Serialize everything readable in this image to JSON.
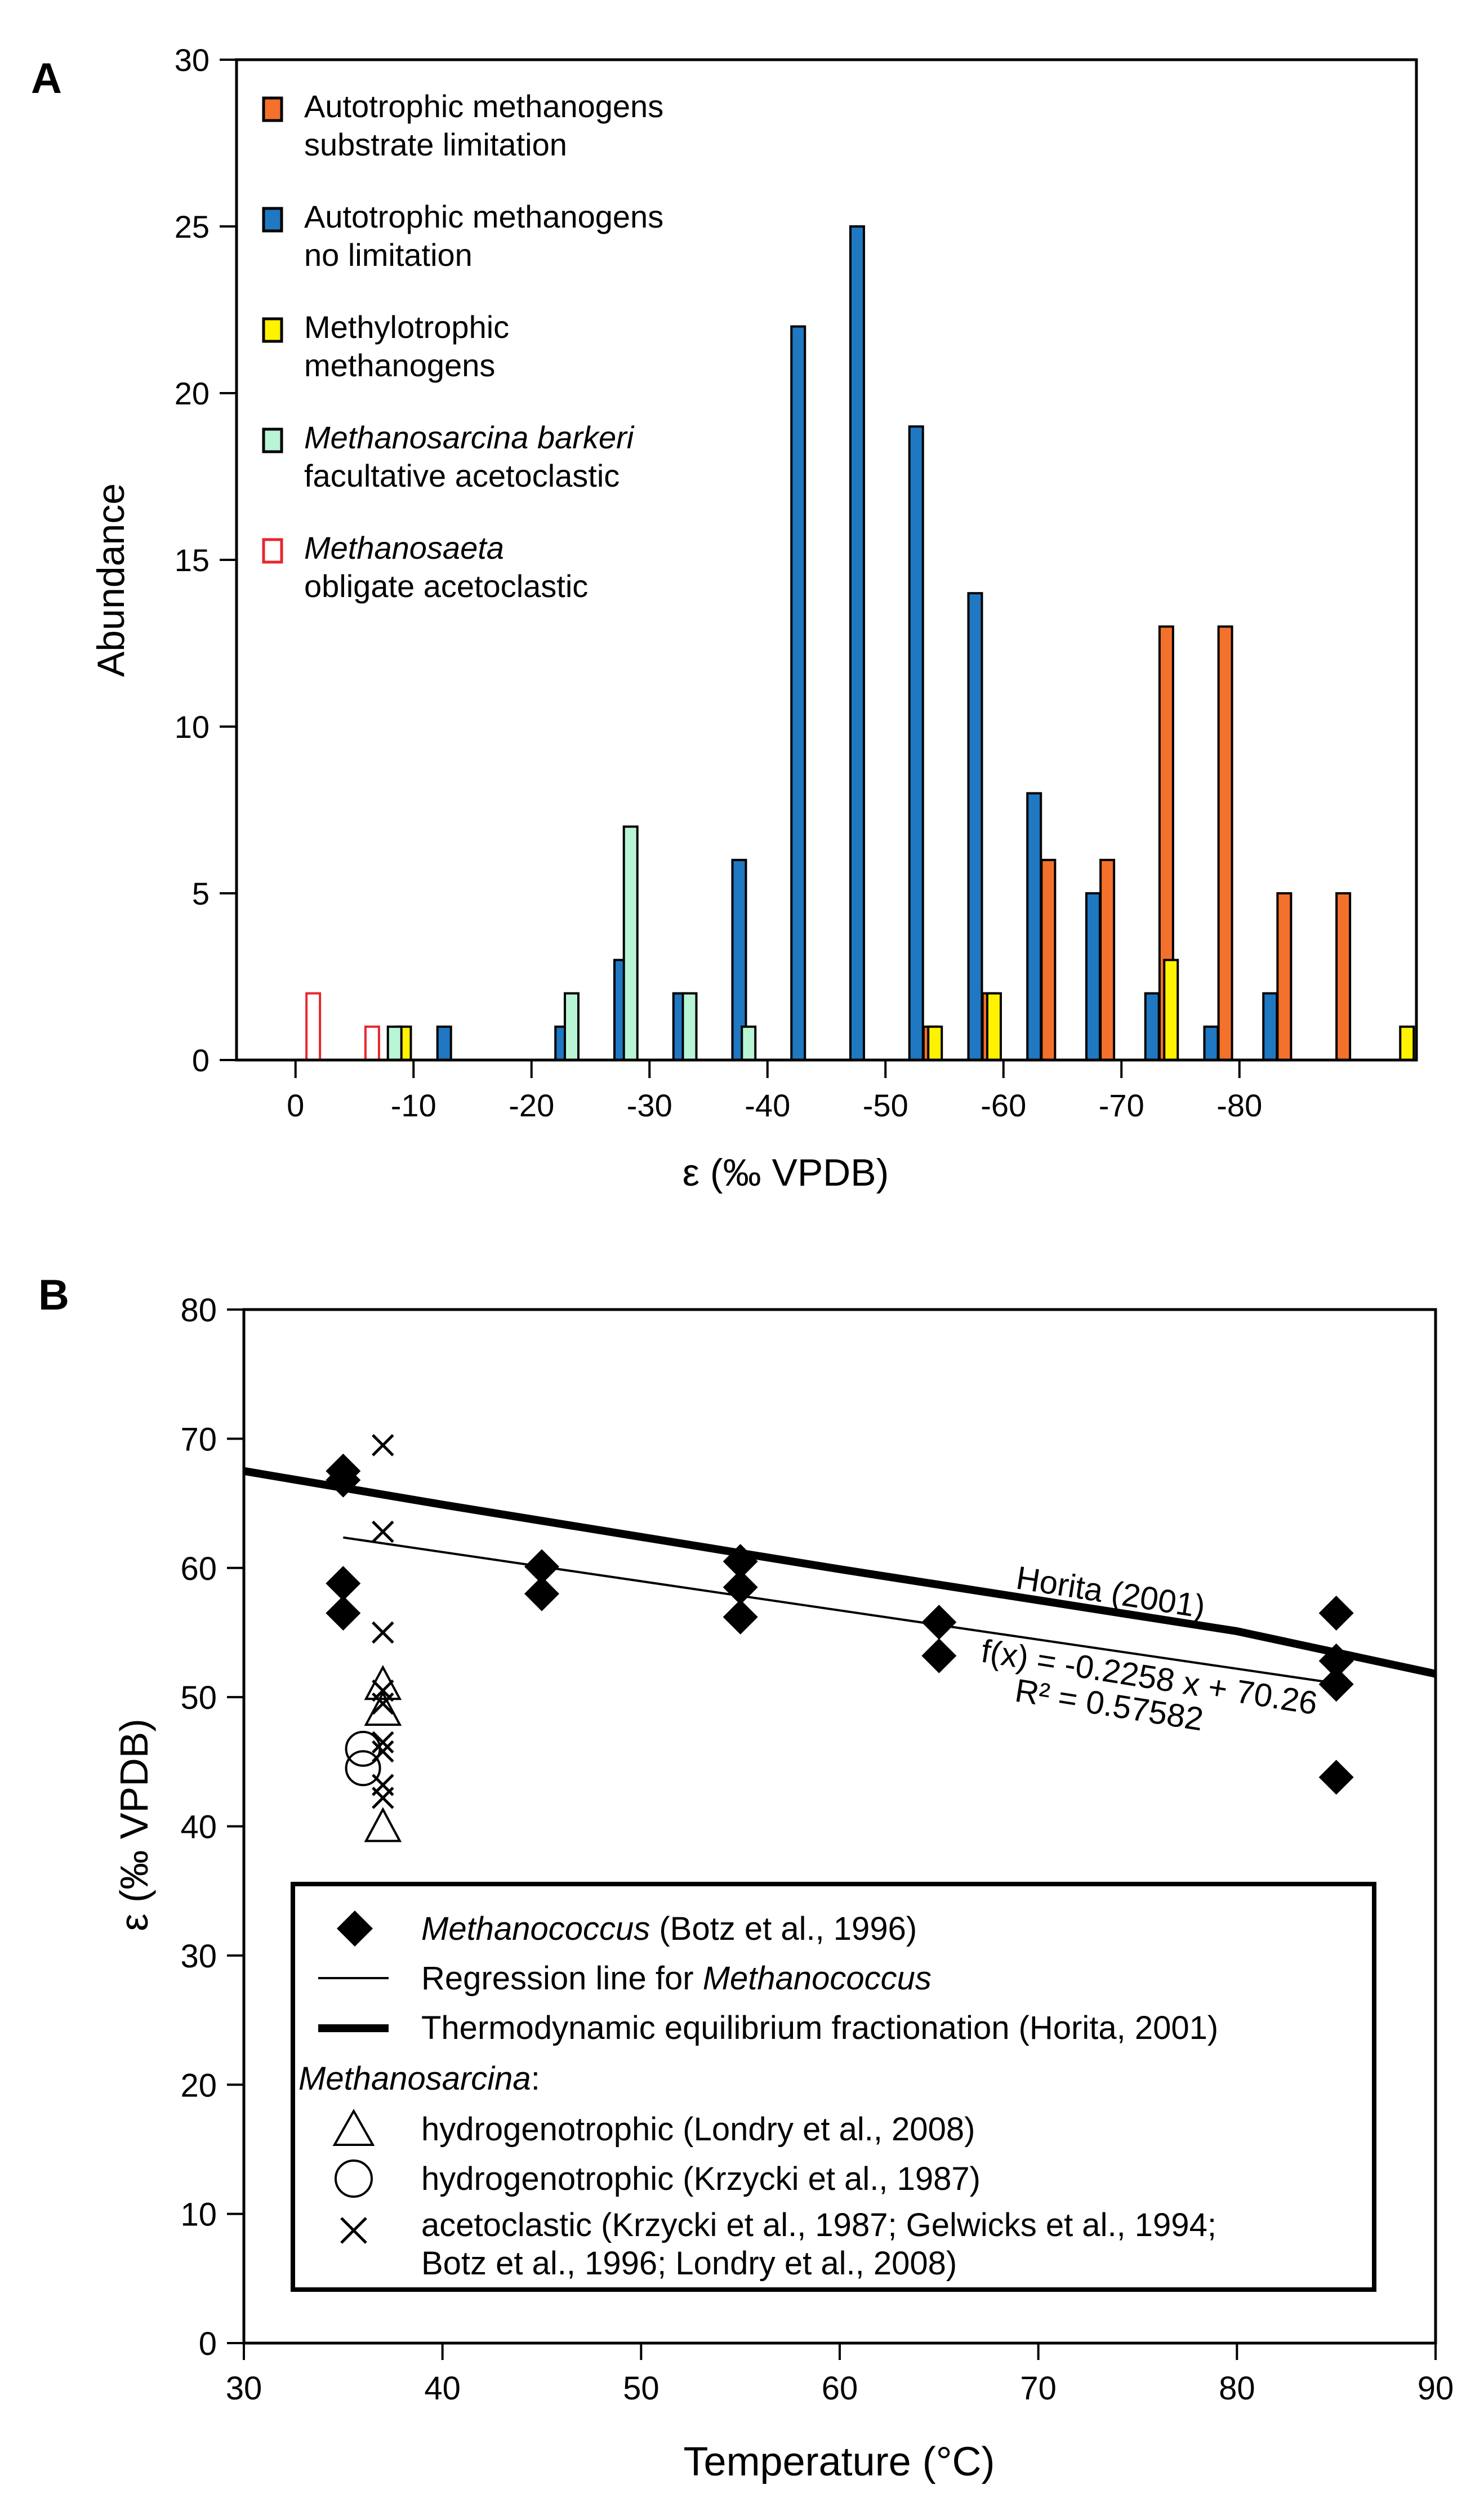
{
  "chart_data": [
    {
      "panel_label": "A",
      "type": "bar",
      "xlabel": "ε (‰ VPDB)",
      "ylabel": "Abundance",
      "ylim": [
        0,
        30
      ],
      "xlim": [
        5,
        -95
      ],
      "x_ticks": [
        0,
        -10,
        -20,
        -30,
        -40,
        -50,
        -60,
        -70,
        -80
      ],
      "x_tick_labels": [
        "0",
        "-10",
        "-20",
        "-30",
        "-40",
        "-50",
        "-60",
        "-70",
        "-80"
      ],
      "y_ticks": [
        0,
        5,
        10,
        15,
        20,
        25,
        30
      ],
      "y_tick_labels": [
        "0",
        "5",
        "10",
        "15",
        "20",
        "25",
        "30"
      ],
      "legend_position": "top-left",
      "series": [
        {
          "name": "Autotrophic methanogens substrate limitation",
          "legend_lines": [
            "Autotrophic methanogens",
            "substrate limitation"
          ],
          "fill": "#f4712b",
          "stroke": "#000000",
          "points": [
            [
              -50,
              1
            ],
            [
              -55,
              2
            ],
            [
              -60,
              6
            ],
            [
              -65,
              6
            ],
            [
              -70,
              13
            ],
            [
              -75,
              13
            ],
            [
              -80,
              5
            ],
            [
              -85,
              5
            ]
          ]
        },
        {
          "name": "Autotrophic methanogens no limitation",
          "legend_lines": [
            "Autotrophic methanogens",
            "no limitation"
          ],
          "fill": "#1f78c1",
          "stroke": "#000000",
          "points": [
            [
              -10,
              1
            ],
            [
              -20,
              1
            ],
            [
              -25,
              3
            ],
            [
              -30,
              2
            ],
            [
              -35,
              6
            ],
            [
              -40,
              22
            ],
            [
              -45,
              25
            ],
            [
              -50,
              19
            ],
            [
              -55,
              14
            ],
            [
              -60,
              8
            ],
            [
              -65,
              5
            ],
            [
              -70,
              2
            ],
            [
              -75,
              1
            ],
            [
              -80,
              2
            ]
          ]
        },
        {
          "name": "Methylotrophic methanogens",
          "legend_lines": [
            "Methylotrophic",
            "methanogens"
          ],
          "fill": "#fff200",
          "stroke": "#000000",
          "points": [
            [
              -5,
              1
            ],
            [
              -50,
              1
            ],
            [
              -55,
              2
            ],
            [
              -70,
              3
            ],
            [
              -90,
              1
            ]
          ]
        },
        {
          "name": "Methanosarcina barkeri facultative acetoclastic",
          "legend_lines": [
            "Methanosarcina barkeri",
            "facultative acetoclastic"
          ],
          "legend_italic_first": true,
          "fill": "#b8f5d5",
          "stroke": "#000000",
          "points": [
            [
              -5,
              1
            ],
            [
              -20,
              2
            ],
            [
              -25,
              7
            ],
            [
              -30,
              2
            ],
            [
              -35,
              1
            ]
          ]
        },
        {
          "name": "Methanosaeta obligate acetoclastic",
          "legend_lines": [
            "Methanosaeta",
            "obligate acetoclastic"
          ],
          "legend_italic_first": true,
          "fill": "#ffffff",
          "stroke": "#e8262c",
          "points": [
            [
              0,
              2
            ],
            [
              -5,
              1
            ]
          ]
        }
      ]
    },
    {
      "panel_label": "B",
      "type": "scatter",
      "xlabel": "Temperature (°C)",
      "ylabel": "ε (‰ VPDB)",
      "xlim": [
        30,
        90
      ],
      "ylim": [
        0,
        80
      ],
      "x_ticks": [
        30,
        40,
        50,
        60,
        70,
        80,
        90
      ],
      "x_tick_labels": [
        "30",
        "40",
        "50",
        "60",
        "70",
        "80",
        "90"
      ],
      "y_ticks": [
        0,
        10,
        20,
        30,
        40,
        50,
        60,
        70,
        80
      ],
      "y_tick_labels": [
        "0",
        "10",
        "20",
        "30",
        "40",
        "50",
        "60",
        "70",
        "80"
      ],
      "series": [
        {
          "name": "Methanococcus (Botz et al., 1996)",
          "marker": "diamond",
          "points": [
            [
              35,
              67.5
            ],
            [
              35,
              66.8
            ],
            [
              35,
              58.8
            ],
            [
              35,
              56.5
            ],
            [
              45,
              60.1
            ],
            [
              45,
              58.0
            ],
            [
              55,
              60.5
            ],
            [
              55,
              58.5
            ],
            [
              55,
              56.2
            ],
            [
              65,
              55.8
            ],
            [
              65,
              53.2
            ],
            [
              85,
              56.5
            ],
            [
              85,
              52.8
            ],
            [
              85,
              51.0
            ],
            [
              85,
              43.8
            ]
          ]
        },
        {
          "name": "Methanosarcina hydrogenotrophic (Londry et al., 2008)",
          "marker": "triangle",
          "points": [
            [
              37,
              51.0
            ],
            [
              37,
              49.0
            ],
            [
              37,
              40.0
            ]
          ]
        },
        {
          "name": "Methanosarcina hydrogenotrophic (Krzycki et al., 1987)",
          "marker": "circle",
          "points": [
            [
              36,
              46.0
            ],
            [
              36,
              44.5
            ]
          ]
        },
        {
          "name": "Methanosarcina acetoclastic (Krzycki et al., 1987; Gelwicks et al., 1994; Botz et al., 1996; Londry et al., 2008)",
          "marker": "x",
          "points": [
            [
              37,
              69.5
            ],
            [
              37,
              62.8
            ],
            [
              37,
              55.0
            ],
            [
              37,
              50.5
            ],
            [
              37,
              49.5
            ],
            [
              37,
              46.5
            ],
            [
              37,
              45.8
            ],
            [
              37,
              43.2
            ],
            [
              37,
              42.2
            ]
          ]
        }
      ],
      "lines": [
        {
          "name": "Regression line for Methanococcus",
          "style": "thin",
          "equation": {
            "slope": -0.2258,
            "intercept": 70.26
          },
          "x_range": [
            35,
            85
          ]
        },
        {
          "name": "Thermodynamic equilibrium fractionation (Horita, 2001)",
          "style": "thick",
          "points": [
            [
              30,
              67.5
            ],
            [
              40,
              64.9
            ],
            [
              50,
              62.4
            ],
            [
              60,
              59.9
            ],
            [
              70,
              57.5
            ],
            [
              80,
              55.1
            ],
            [
              90,
              51.8
            ]
          ]
        }
      ],
      "annotations": {
        "horita": "Horita (2001)",
        "equation": "f(x) = -0.2258 x + 70.26",
        "r2": "R² = 0.57582"
      },
      "legend": {
        "position": "bottom",
        "methanococcus_italic": "Methanococcus",
        "methanococcus_rest": " (Botz et al., 1996)",
        "regression_text": "Regression line for ",
        "regression_italic": "Methanococcus",
        "thermo_text": "Thermodynamic equilibrium fractionation (Horita, 2001)",
        "methanosarcina_header": "Methanosarcina",
        "methanosarcina_colon": ":",
        "londry": "hydrogenotrophic (Londry et al., 2008)",
        "krzycki": "hydrogenotrophic (Krzycki et al., 1987)",
        "aceto_line1": "acetoclastic (Krzycki et al., 1987; Gelwicks et al., 1994;",
        "aceto_line2": "Botz et al., 1996; Londry et al., 2008)"
      }
    }
  ]
}
